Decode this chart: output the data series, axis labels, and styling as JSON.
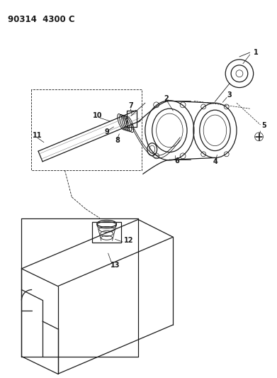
{
  "title": "90314  4300 C",
  "bg_color": "#ffffff",
  "line_color": "#1a1a1a",
  "title_fontsize": 8.5,
  "label_fontsize": 7,
  "figsize": [
    3.91,
    5.33
  ],
  "dpi": 100
}
